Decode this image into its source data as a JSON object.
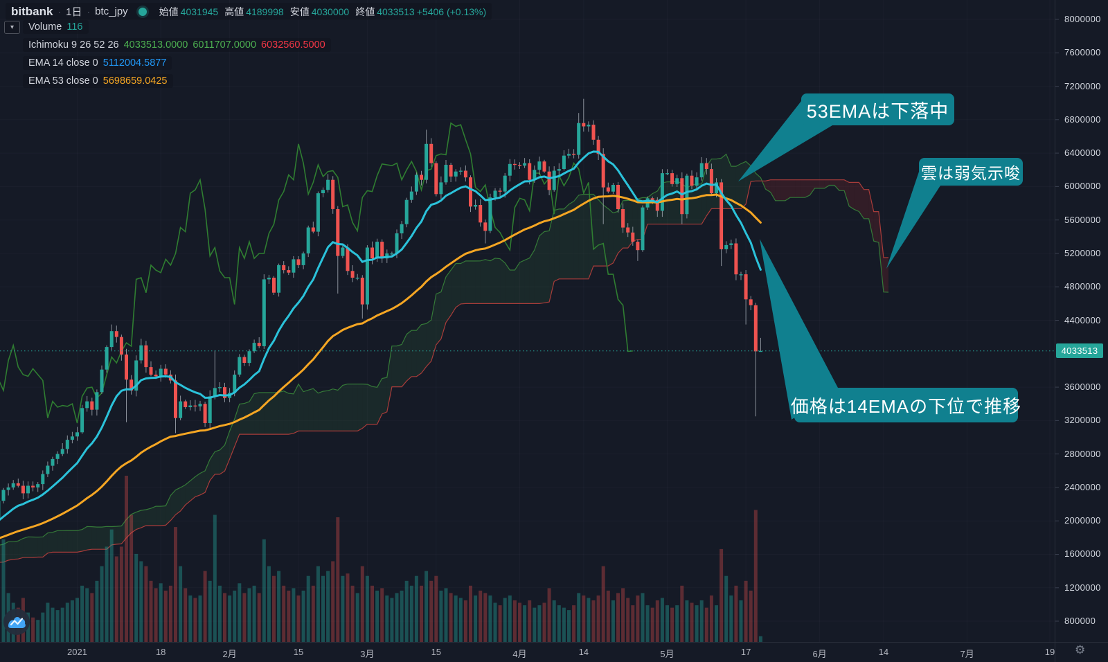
{
  "header": {
    "exchange": "bitbank",
    "interval": "1日",
    "pair": "btc_jpy",
    "separator": "·",
    "ohlc": {
      "open_label": "始値",
      "open": "4031945",
      "high_label": "高値",
      "high": "4189998",
      "low_label": "安値",
      "low": "4030000",
      "close_label": "終値",
      "close": "4033513",
      "change": "+5406 (+0.13%)"
    }
  },
  "legend": {
    "volume_label": "Volume",
    "volume_value": "116",
    "ichimoku_label": "Ichimoku 9 26 52 26",
    "ichimoku_values": [
      "4033513.0000",
      "6011707.0000",
      "6032560.5000"
    ],
    "ema14_label": "EMA 14 close 0",
    "ema14_value": "5112004.5877",
    "ema53_label": "EMA 53 close 0",
    "ema53_value": "5698659.0425"
  },
  "annotations": [
    {
      "text": "53EMAは下落中"
    },
    {
      "text": "雲は弱気示唆"
    },
    {
      "text": "価格は14EMAの下位で推移"
    }
  ],
  "price_axis": {
    "last_price": "4033513",
    "ticks": [
      "8000000",
      "7600000",
      "7200000",
      "6800000",
      "6400000",
      "6000000",
      "5600000",
      "5200000",
      "4800000",
      "4400000",
      "3600000",
      "3200000",
      "2800000",
      "2400000",
      "2000000",
      "1600000",
      "1200000",
      "800000"
    ]
  },
  "time_axis": {
    "ticks": [
      {
        "label": "2021",
        "g": 95
      },
      {
        "label": "18",
        "g": 112
      },
      {
        "label": "2月",
        "g": 126
      },
      {
        "label": "15",
        "g": 140
      },
      {
        "label": "3月",
        "g": 154
      },
      {
        "label": "15",
        "g": 168
      },
      {
        "label": "4月",
        "g": 185
      },
      {
        "label": "14",
        "g": 198
      },
      {
        "label": "5月",
        "g": 215
      },
      {
        "label": "17",
        "g": 231
      },
      {
        "label": "6月",
        "g": 246
      },
      {
        "label": "14",
        "g": 259
      },
      {
        "label": "7月",
        "g": 276
      },
      {
        "label": "19",
        "g": 294
      }
    ]
  },
  "icons": {
    "gear": "⚙",
    "chevron_down": "▾"
  },
  "colors": {
    "bg": "#151a26",
    "panel_border": "#2a2f3b",
    "up": "#26a69a",
    "down": "#ef5350",
    "wick": "rgba(178,184,194,0.75)",
    "vol_up": "rgba(38,166,154,0.40)",
    "vol_down": "rgba(239,83,80,0.33)",
    "ema14_line": "#2bc2da",
    "ema53_line": "#f5a623",
    "chikou": "#2f7d31",
    "senkou_a": "#357a38",
    "senkou_b": "#a83c3a",
    "cloud_bull": "rgba(76,175,80,0.10)",
    "cloud_bear": "rgba(183,45,45,0.18)",
    "grid": "rgba(160,170,190,0.045)",
    "callout": "#10808f",
    "last_price_line": "#26a69a",
    "tick_mark": "#3a4050"
  },
  "chart_data": {
    "type": "candlestick",
    "pair": "btc_jpy",
    "interval": "1D",
    "price_unit": "JPY (values stored in millions)",
    "indicators": {
      "ichimoku_params": "9 26 52 26",
      "ema_fast": 14,
      "ema_slow": 53,
      "volume": true
    },
    "ylim_millions": [
      0.8,
      8.0
    ],
    "last_price_m": 4.033513,
    "pre_closes": [
      1.14,
      1.12,
      1.13,
      1.11,
      1.11,
      1.12,
      1.12,
      1.13,
      1.12,
      1.14,
      1.15,
      1.16,
      1.2,
      1.2,
      1.2,
      1.21,
      1.2,
      1.21,
      1.19,
      1.22,
      1.26,
      1.28,
      1.24,
      1.23,
      1.36,
      1.36,
      1.36,
      1.37,
      1.38,
      1.42,
      1.4,
      1.41,
      1.44,
      1.45,
      1.44,
      1.45,
      1.47,
      1.48,
      1.51,
      1.62,
      1.6,
      1.59,
      1.62,
      1.6,
      1.65,
      1.67,
      1.7,
      1.71,
      1.68,
      1.73,
      1.79,
      1.86,
      1.87,
      1.92,
      1.95,
      1.92,
      1.96,
      1.93,
      2.0,
      1.98,
      1.81,
      1.79,
      1.88,
      2.06,
      2.04,
      2.0,
      2.05,
      1.99,
      2.0,
      2.01,
      2.02,
      1.98,
      1.91,
      1.9,
      1.87,
      1.92,
      2.0,
      2.02,
      2.03,
      2.24
    ],
    "closes": [
      2.37,
      2.4,
      2.45,
      2.42,
      2.33,
      2.42,
      2.4,
      2.44,
      2.56,
      2.66,
      2.74,
      2.8,
      2.86,
      2.97,
      3.01,
      3.06,
      3.35,
      3.43,
      3.33,
      3.54,
      3.81,
      4.08,
      4.27,
      4.2,
      3.99,
      3.69,
      3.56,
      3.92,
      4.1,
      3.84,
      3.75,
      3.73,
      3.82,
      3.75,
      3.68,
      3.23,
      3.43,
      3.36,
      3.38,
      3.37,
      3.4,
      3.17,
      3.49,
      3.59,
      3.6,
      3.47,
      3.53,
      3.75,
      3.96,
      3.89,
      4.03,
      4.13,
      4.09,
      4.89,
      4.91,
      4.73,
      5.06,
      5.0,
      4.97,
      5.13,
      5.06,
      5.2,
      5.51,
      5.46,
      5.92,
      5.96,
      6.08,
      5.73,
      5.17,
      5.27,
      4.99,
      4.91,
      4.91,
      4.59,
      5.27,
      5.14,
      5.34,
      5.14,
      5.2,
      5.2,
      5.44,
      5.55,
      5.84,
      5.94,
      6.14,
      6.08,
      6.51,
      6.28,
      5.91,
      6.05,
      6.26,
      6.12,
      6.18,
      6.19,
      6.11,
      5.76,
      5.78,
      5.57,
      5.47,
      5.87,
      5.95,
      5.94,
      6.13,
      6.27,
      6.26,
      6.25,
      6.28,
      6.08,
      6.2,
      6.3,
      6.18,
      5.96,
      6.19,
      6.21,
      6.37,
      6.39,
      6.38,
      6.76,
      6.72,
      6.74,
      6.56,
      6.39,
      5.99,
      5.94,
      6.02,
      5.73,
      5.51,
      5.45,
      5.34,
      5.24,
      5.75,
      5.86,
      5.84,
      5.71,
      6.16,
      6.16,
      6.03,
      6.1,
      5.67,
      6.13,
      6.01,
      6.11,
      6.28,
      6.21,
      5.92,
      6.05,
      5.25,
      5.3,
      5.32,
      4.95,
      4.95,
      4.65,
      4.58,
      4.028,
      4.0335
    ],
    "volumes": [
      2100,
      1000,
      800,
      700,
      900,
      600,
      500,
      450,
      600,
      800,
      700,
      650,
      700,
      800,
      850,
      900,
      1150,
      1100,
      1000,
      1250,
      1550,
      1950,
      2300,
      1750,
      1950,
      3400,
      2600,
      1800,
      1650,
      1550,
      1250,
      1100,
      1200,
      1050,
      1150,
      2350,
      1550,
      1100,
      950,
      900,
      950,
      1450,
      1250,
      2600,
      1150,
      1000,
      950,
      1050,
      1200,
      1000,
      1100,
      1150,
      1000,
      2100,
      1550,
      1350,
      1450,
      1150,
      1050,
      1100,
      950,
      1050,
      1350,
      1150,
      1550,
      1350,
      1450,
      1650,
      2550,
      1350,
      1400,
      1150,
      1000,
      1550,
      1350,
      1150,
      1050,
      1100,
      950,
      900,
      1000,
      1050,
      1250,
      1150,
      1350,
      1150,
      1450,
      1250,
      1350,
      1050,
      1100,
      1000,
      950,
      900,
      850,
      1150,
      950,
      1050,
      1000,
      950,
      800,
      750,
      900,
      950,
      850,
      800,
      750,
      850,
      700,
      750,
      800,
      1100,
      850,
      750,
      700,
      650,
      750,
      1000,
      950,
      900,
      850,
      950,
      1550,
      1050,
      850,
      1000,
      1100,
      900,
      750,
      950,
      1000,
      750,
      700,
      850,
      900,
      750,
      700,
      750,
      1150,
      850,
      800,
      750,
      850,
      700,
      950,
      750,
      1900,
      1350,
      950,
      1150,
      850,
      1250,
      1050,
      2700,
      116
    ],
    "volume_scale_max": 3400,
    "high_overrides": {
      "102": 4.35,
      "108": 4.18,
      "123": 4.04,
      "133": 4.95,
      "146": 6.15,
      "166": 6.68,
      "197": 6.88,
      "198": 7.05
    },
    "low_overrides": {
      "105": 3.18,
      "115": 3.05,
      "148": 4.72,
      "153": 4.42,
      "178": 5.32,
      "202": 5.55,
      "209": 5.11,
      "218": 5.55,
      "226": 5.05,
      "231": 4.35,
      "233": 3.25
    },
    "last_candle": {
      "o": 4.032,
      "h": 4.19,
      "l": 4.03,
      "c": 4.0335
    }
  }
}
